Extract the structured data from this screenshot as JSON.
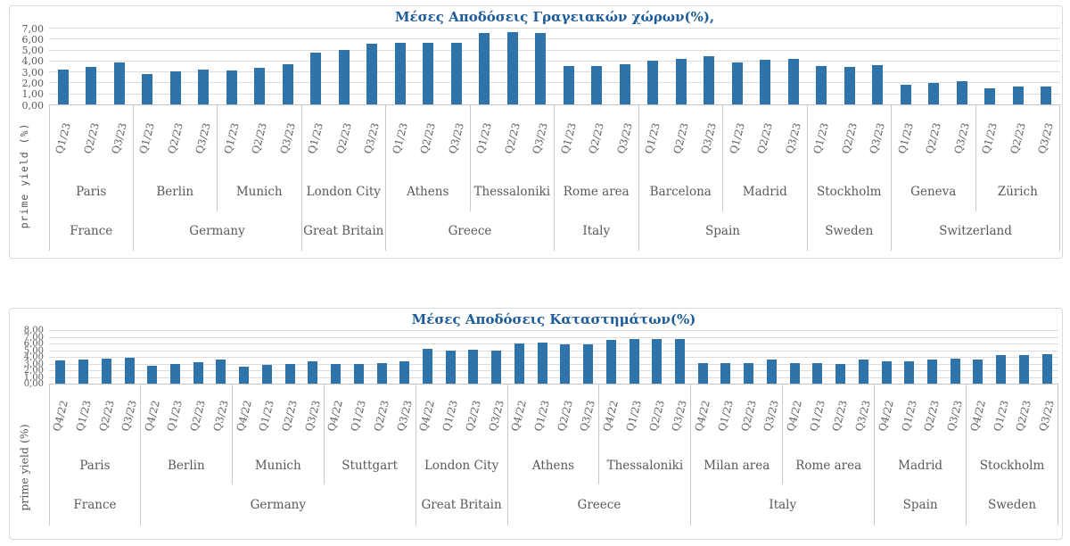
{
  "colors": {
    "bar": "#2e73aa",
    "title": "#1e5c99",
    "grid": "#dcdcdc",
    "separator": "#c8c8c8",
    "label_text": "#595959"
  },
  "chart_data": [
    {
      "type": "bar",
      "title": "Μέσες Αποδόσεις Γραγειακών χώρων(%),",
      "ylabel": "prime yield (%)",
      "ylim": [
        0,
        7
      ],
      "ytick_step": 1,
      "ytick_labels": [
        "7,00",
        "6,00",
        "5,00",
        "4,00",
        "3,00",
        "2,00",
        "1,00",
        "0,00"
      ],
      "grid": true,
      "legend": "none",
      "quarters": [
        "Q1/23",
        "Q2/23",
        "Q3/23"
      ],
      "groups": [
        {
          "country": "France",
          "cities": [
            {
              "city": "Paris",
              "values": [
                3.2,
                3.45,
                3.85
              ]
            }
          ]
        },
        {
          "country": "Germany",
          "cities": [
            {
              "city": "Berlin",
              "values": [
                2.75,
                3.05,
                3.2
              ]
            },
            {
              "city": "Munich",
              "values": [
                3.1,
                3.35,
                3.65
              ]
            }
          ]
        },
        {
          "country": "Great Britain",
          "cities": [
            {
              "city": "London City",
              "values": [
                4.75,
                5.0,
                5.5
              ]
            }
          ]
        },
        {
          "country": "Greece",
          "cities": [
            {
              "city": "Athens",
              "values": [
                5.6,
                5.6,
                5.65
              ]
            },
            {
              "city": "Thessaloniki",
              "values": [
                6.55,
                6.6,
                6.5
              ]
            }
          ]
        },
        {
          "country": "Italy",
          "cities": [
            {
              "city": "Rome area",
              "values": [
                3.5,
                3.5,
                3.7
              ]
            }
          ]
        },
        {
          "country": "Spain",
          "cities": [
            {
              "city": "Barcelona",
              "values": [
                3.95,
                4.15,
                4.4
              ]
            },
            {
              "city": "Madrid",
              "values": [
                3.8,
                4.1,
                4.15
              ]
            }
          ]
        },
        {
          "country": "Sweden",
          "cities": [
            {
              "city": "Stockholm",
              "values": [
                3.5,
                3.45,
                3.6
              ]
            }
          ]
        },
        {
          "country": "Switzerland",
          "cities": [
            {
              "city": "Geneva",
              "values": [
                1.8,
                1.95,
                2.1
              ]
            },
            {
              "city": "Zürich",
              "values": [
                1.45,
                1.6,
                1.65
              ]
            }
          ]
        }
      ]
    },
    {
      "type": "bar",
      "title": "Μέσες Αποδόσεις Καταστημάτων(%)",
      "ylabel": "prime yield (%)",
      "ylim": [
        0,
        8
      ],
      "ytick_step": 1,
      "ytick_labels": [
        "8,00",
        "7,00",
        "6,00",
        "5,00",
        "4,00",
        "3,00",
        "2,00",
        "1,00",
        "0,00"
      ],
      "grid": true,
      "legend": "none",
      "quarters": [
        "Q4/22",
        "Q1/23",
        "Q2/23",
        "Q3/23"
      ],
      "groups": [
        {
          "country": "France",
          "cities": [
            {
              "city": "Paris",
              "values": [
                3.5,
                3.55,
                3.8,
                3.9
              ]
            }
          ]
        },
        {
          "country": "Germany",
          "cities": [
            {
              "city": "Berlin",
              "values": [
                2.65,
                2.9,
                3.15,
                3.55
              ]
            },
            {
              "city": "Munich",
              "values": [
                2.6,
                2.75,
                3.0,
                3.4
              ]
            },
            {
              "city": "Stuttgart",
              "values": [
                2.9,
                3.0,
                3.05,
                3.35
              ]
            }
          ]
        },
        {
          "country": "Great Britain",
          "cities": [
            {
              "city": "London City",
              "values": [
                5.25,
                5.0,
                5.05,
                5.0
              ]
            }
          ]
        },
        {
          "country": "Greece",
          "cities": [
            {
              "city": "Athens",
              "values": [
                6.05,
                6.1,
                5.9,
                5.9
              ]
            },
            {
              "city": "Thessaloniki",
              "values": [
                6.6,
                6.65,
                6.65,
                6.65
              ]
            }
          ]
        },
        {
          "country": "Italy",
          "cities": [
            {
              "city": "Milan area",
              "values": [
                3.05,
                3.1,
                3.1,
                3.6
              ]
            },
            {
              "city": "Rome area",
              "values": [
                3.1,
                3.05,
                3.0,
                3.6
              ]
            }
          ]
        },
        {
          "country": "Spain",
          "cities": [
            {
              "city": "Madrid",
              "values": [
                3.4,
                3.4,
                3.6,
                3.8
              ]
            }
          ]
        },
        {
          "country": "Sweden",
          "cities": [
            {
              "city": "Stockholm",
              "values": [
                3.6,
                4.25,
                4.3,
                4.4
              ]
            }
          ]
        }
      ]
    }
  ]
}
